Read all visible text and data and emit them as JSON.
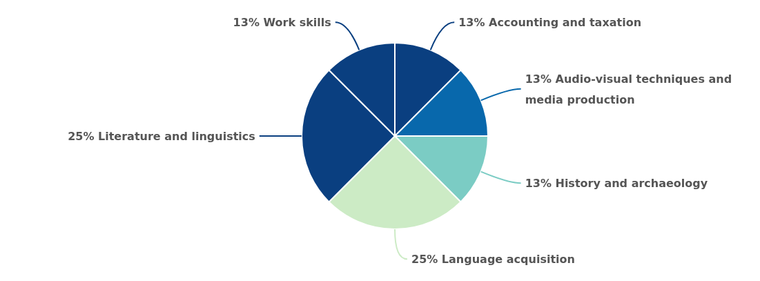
{
  "chart_data": {
    "type": "pie",
    "categories": [
      "Accounting and taxation",
      "Audio-visual techniques and media production",
      "History and archaeology",
      "Language acquisition",
      "Literature and linguistics",
      "Work skills"
    ],
    "values": [
      12.5,
      12.5,
      12.5,
      25,
      25,
      12.5
    ],
    "value_labels": [
      "13%",
      "13%",
      "13%",
      "25%",
      "25%",
      "13%"
    ],
    "colors": [
      "#0a3f80",
      "#0868ac",
      "#7bccc4",
      "#ccebc5",
      "#0a3f80",
      "#0a3f80"
    ]
  }
}
